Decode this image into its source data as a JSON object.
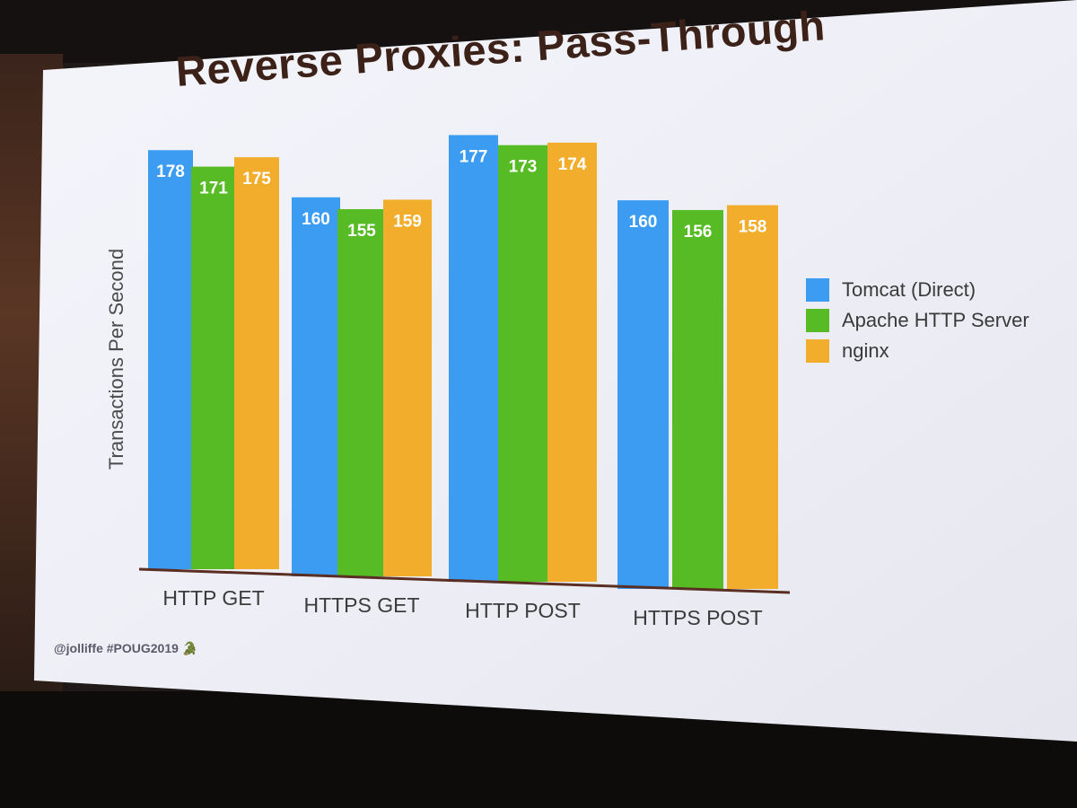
{
  "slide": {
    "title": "Reverse Proxies: Pass-Through",
    "footer": "@jolliffe #POUG2019 🐊"
  },
  "chart_data": {
    "type": "bar",
    "title": "Reverse Proxies: Pass-Through",
    "xlabel": "",
    "ylabel": "Transactions Per Second",
    "categories": [
      "HTTP GET",
      "HTTPS GET",
      "HTTP POST",
      "HTTPS POST"
    ],
    "series": [
      {
        "name": "Tomcat (Direct)",
        "color": "#3b9cf2",
        "values": [
          178,
          160,
          177,
          160
        ]
      },
      {
        "name": "Apache HTTP Server",
        "color": "#56bb24",
        "values": [
          171,
          155,
          173,
          156
        ]
      },
      {
        "name": "nginx",
        "color": "#f2ad2c",
        "values": [
          175,
          159,
          174,
          158
        ]
      }
    ],
    "data_labels": true,
    "grid": false,
    "legend_position": "right",
    "ylim": [
      0,
      180
    ]
  }
}
